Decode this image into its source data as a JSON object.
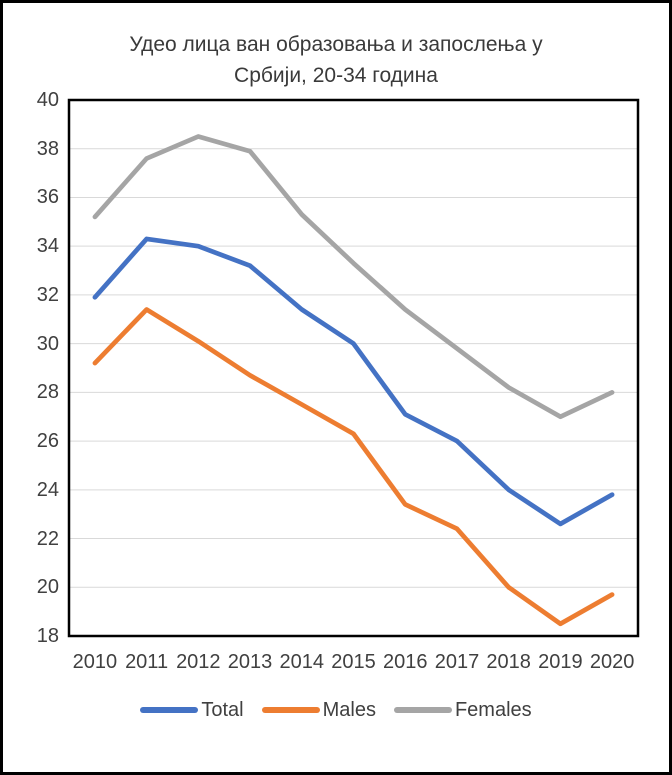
{
  "title": {
    "line1": "Удео лица ван образовања и запослења у",
    "line2": "Србији, 20-34 година"
  },
  "colors": {
    "total": "#4472C4",
    "males": "#ED7D31",
    "females": "#A5A5A5",
    "gridline": "#D9D9D9",
    "axis_text": "#404040",
    "title_text": "#3A3A3A",
    "plot_border": "#000000",
    "frame_border": "#000000"
  },
  "chart_data": {
    "type": "line",
    "title": "Удео лица ван образовања и запослења у Србији, 20-34 година",
    "xlabel": "",
    "ylabel": "",
    "categories": [
      "2010",
      "2011",
      "2012",
      "2013",
      "2014",
      "2015",
      "2016",
      "2017",
      "2018",
      "2019",
      "2020"
    ],
    "series": [
      {
        "name": "Total",
        "color": "#4472C4",
        "values": [
          31.9,
          34.3,
          34.0,
          33.2,
          31.4,
          30.0,
          27.1,
          26.0,
          24.0,
          22.6,
          23.8
        ]
      },
      {
        "name": "Males",
        "color": "#ED7D31",
        "values": [
          29.2,
          31.4,
          30.1,
          28.7,
          27.5,
          26.3,
          23.4,
          22.4,
          20.0,
          18.5,
          19.7
        ]
      },
      {
        "name": "Females",
        "color": "#A5A5A5",
        "values": [
          35.2,
          37.6,
          38.5,
          37.9,
          35.3,
          33.3,
          31.4,
          29.8,
          28.2,
          27.0,
          28.0
        ]
      }
    ],
    "ylim": [
      18,
      40
    ],
    "y_tick_step": 2,
    "y_ticks": [
      "40",
      "38",
      "36",
      "34",
      "32",
      "30",
      "28",
      "26",
      "24",
      "22",
      "20",
      "18"
    ],
    "grid": true,
    "gridline_color": "#D9D9D9",
    "legend_position": "bottom",
    "legend_entries": [
      "Total",
      "Males",
      "Females"
    ]
  }
}
